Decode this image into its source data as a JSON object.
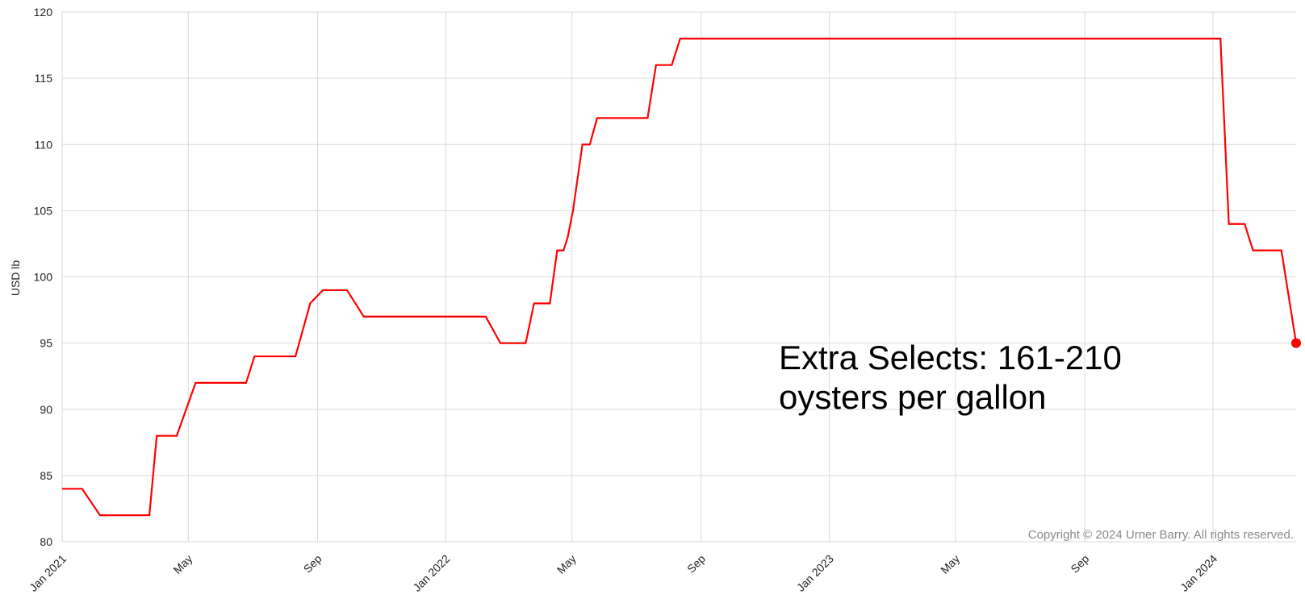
{
  "chart_data": {
    "type": "line",
    "title": "",
    "xlabel": "",
    "ylabel": "USD lb",
    "ylim": [
      80,
      120
    ],
    "xlim": [
      "2021-01-01",
      "2024-03-20"
    ],
    "y_ticks": [
      80,
      85,
      90,
      95,
      100,
      105,
      110,
      115,
      120
    ],
    "x_ticks": [
      {
        "date": "2021-01-01",
        "label": "Jan 2021"
      },
      {
        "date": "2021-05-01",
        "label": "May"
      },
      {
        "date": "2021-09-01",
        "label": "Sep"
      },
      {
        "date": "2022-01-01",
        "label": "Jan 2022"
      },
      {
        "date": "2022-05-01",
        "label": "May"
      },
      {
        "date": "2022-09-01",
        "label": "Sep"
      },
      {
        "date": "2023-01-01",
        "label": "Jan 2023"
      },
      {
        "date": "2023-05-01",
        "label": "May"
      },
      {
        "date": "2023-09-01",
        "label": "Sep"
      },
      {
        "date": "2024-01-01",
        "label": "Jan 2024"
      }
    ],
    "grid": true,
    "series": [
      {
        "color": "#ff0000",
        "points": [
          {
            "x": "2021-01-01",
            "y": 84
          },
          {
            "x": "2021-01-20",
            "y": 84
          },
          {
            "x": "2021-02-06",
            "y": 82
          },
          {
            "x": "2021-03-25",
            "y": 82
          },
          {
            "x": "2021-04-01",
            "y": 88
          },
          {
            "x": "2021-04-20",
            "y": 88
          },
          {
            "x": "2021-05-08",
            "y": 92
          },
          {
            "x": "2021-06-25",
            "y": 92
          },
          {
            "x": "2021-07-03",
            "y": 94
          },
          {
            "x": "2021-08-11",
            "y": 94
          },
          {
            "x": "2021-08-25",
            "y": 98
          },
          {
            "x": "2021-09-06",
            "y": 99
          },
          {
            "x": "2021-09-29",
            "y": 99
          },
          {
            "x": "2021-10-15",
            "y": 97
          },
          {
            "x": "2022-02-08",
            "y": 97
          },
          {
            "x": "2022-02-22",
            "y": 95
          },
          {
            "x": "2022-03-18",
            "y": 95
          },
          {
            "x": "2022-03-26",
            "y": 98
          },
          {
            "x": "2022-04-10",
            "y": 98
          },
          {
            "x": "2022-04-17",
            "y": 102
          },
          {
            "x": "2022-04-23",
            "y": 102
          },
          {
            "x": "2022-04-27",
            "y": 103
          },
          {
            "x": "2022-05-02",
            "y": 105
          },
          {
            "x": "2022-05-11",
            "y": 110
          },
          {
            "x": "2022-05-18",
            "y": 110
          },
          {
            "x": "2022-05-25",
            "y": 112
          },
          {
            "x": "2022-07-12",
            "y": 112
          },
          {
            "x": "2022-07-20",
            "y": 116
          },
          {
            "x": "2022-08-04",
            "y": 116
          },
          {
            "x": "2022-08-12",
            "y": 118
          },
          {
            "x": "2024-01-08",
            "y": 118
          },
          {
            "x": "2024-01-16",
            "y": 104
          },
          {
            "x": "2024-01-31",
            "y": 104
          },
          {
            "x": "2024-02-08",
            "y": 102
          },
          {
            "x": "2024-03-06",
            "y": 102
          },
          {
            "x": "2024-03-20",
            "y": 95
          }
        ]
      }
    ],
    "last_point_marker": true,
    "annotation_lines": [
      "Extra Selects: 161-210",
      "oysters per gallon"
    ],
    "copyright": "Copyright © 2024 Urner Barry. All rights reserved."
  }
}
